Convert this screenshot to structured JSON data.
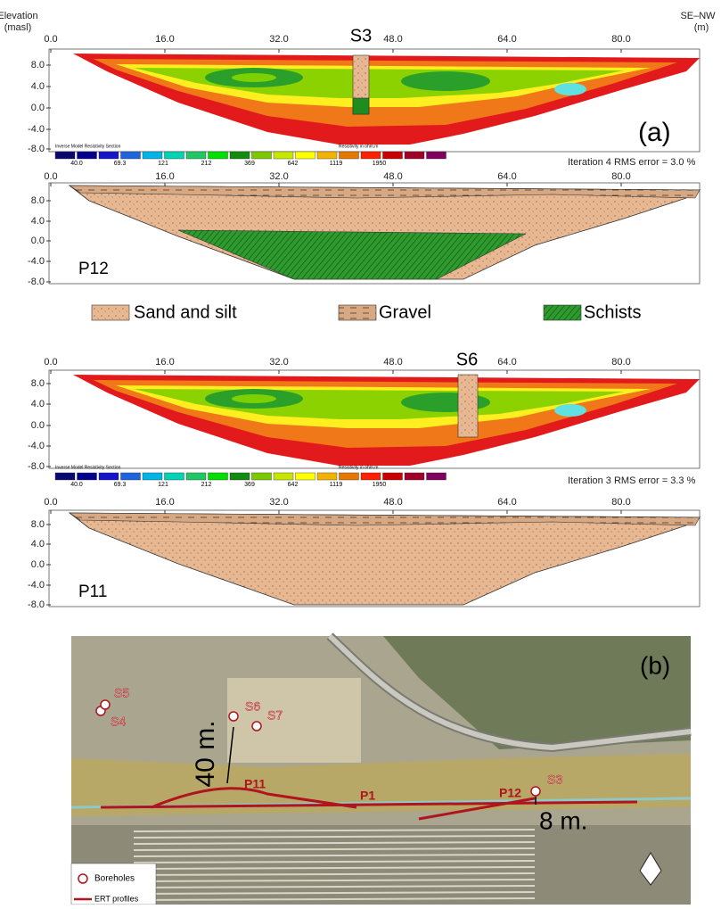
{
  "axis_title": {
    "left": [
      "Elevation",
      "(masl)"
    ],
    "right": [
      "SE–NW",
      "(m)"
    ]
  },
  "x_ticks": [
    "0.0",
    "16.0",
    "32.0",
    "48.0",
    "64.0",
    "80.0"
  ],
  "y_ticks": [
    "8.0",
    "4.0",
    "0.0",
    "-4.0",
    "-8.0"
  ],
  "color_scale": {
    "title": "Inverse Model Resistivity Section",
    "unit": "Resistivity in ohm.m",
    "labels": [
      "40.0",
      "69.3",
      "121",
      "212",
      "369",
      "642",
      "1119",
      "1950"
    ]
  },
  "panels": [
    {
      "borehole": "S3",
      "label": "(a)",
      "rms": "Iteration 4 RMS error = 3.0 %"
    },
    {
      "profile": "P12"
    },
    {
      "items": [
        "Sand and silt",
        "Gravel",
        "Schists"
      ]
    },
    {
      "borehole": "S6",
      "rms": "Iteration 3 RMS error = 3.3 %"
    },
    {
      "profile": "P11"
    }
  ],
  "map": {
    "label": "(b)",
    "boreholes": [
      "S5",
      "S4",
      "S6",
      "S7",
      "S3"
    ],
    "profiles": [
      "P11",
      "P1",
      "P12"
    ],
    "distances": [
      "40 m.",
      "8 m."
    ],
    "legend": [
      "Boreholes",
      "ERT profiles"
    ]
  }
}
